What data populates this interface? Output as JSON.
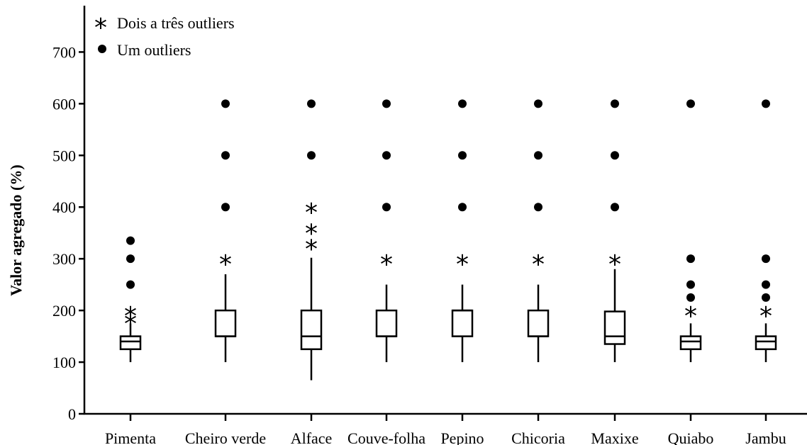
{
  "chart_data": {
    "type": "box",
    "ylabel": "Valor agregado (%)",
    "xlabel": "",
    "ylim": [
      0,
      750
    ],
    "yticks": [
      0,
      100,
      200,
      300,
      400,
      500,
      600,
      700
    ],
    "categories": [
      "Pimenta",
      "Cheiro verde",
      "Alface",
      "Couve-folha",
      "Pepino",
      "Chicoria",
      "Maxixe",
      "Quiabo",
      "Jambu"
    ],
    "boxes": [
      {
        "min": 100,
        "q1": 125,
        "median": 140,
        "q3": 150,
        "max": 175
      },
      {
        "min": 100,
        "q1": 150,
        "median": 150,
        "q3": 200,
        "max": 270
      },
      {
        "min": 65,
        "q1": 125,
        "median": 150,
        "q3": 200,
        "max": 302
      },
      {
        "min": 100,
        "q1": 150,
        "median": 150,
        "q3": 200,
        "max": 250
      },
      {
        "min": 100,
        "q1": 150,
        "median": 200,
        "q3": 200,
        "max": 250
      },
      {
        "min": 100,
        "q1": 150,
        "median": 150,
        "q3": 200,
        "max": 250
      },
      {
        "min": 100,
        "q1": 135,
        "median": 150,
        "q3": 198,
        "max": 280
      },
      {
        "min": 100,
        "q1": 125,
        "median": 140,
        "q3": 150,
        "max": 175
      },
      {
        "min": 100,
        "q1": 125,
        "median": 140,
        "q3": 150,
        "max": 175
      }
    ],
    "outliers_dot": [
      [
        300,
        335,
        250
      ],
      [
        400,
        500,
        600
      ],
      [
        500,
        600
      ],
      [
        400,
        500,
        600
      ],
      [
        400,
        500,
        600
      ],
      [
        400,
        500,
        600
      ],
      [
        400,
        500,
        600
      ],
      [
        300,
        250,
        225,
        600
      ],
      [
        300,
        250,
        225,
        600
      ]
    ],
    "outliers_star": [
      [
        185,
        200
      ],
      [
        300
      ],
      [
        330,
        360,
        400
      ],
      [
        300
      ],
      [
        300
      ],
      [
        300
      ],
      [
        300
      ],
      [
        200
      ],
      [
        200
      ]
    ],
    "legend": {
      "placement": "top-left",
      "entries": [
        {
          "symbol": "star",
          "label": "Dois a três outliers"
        },
        {
          "symbol": "dot",
          "label": "Um outliers"
        }
      ]
    },
    "grid": false
  }
}
